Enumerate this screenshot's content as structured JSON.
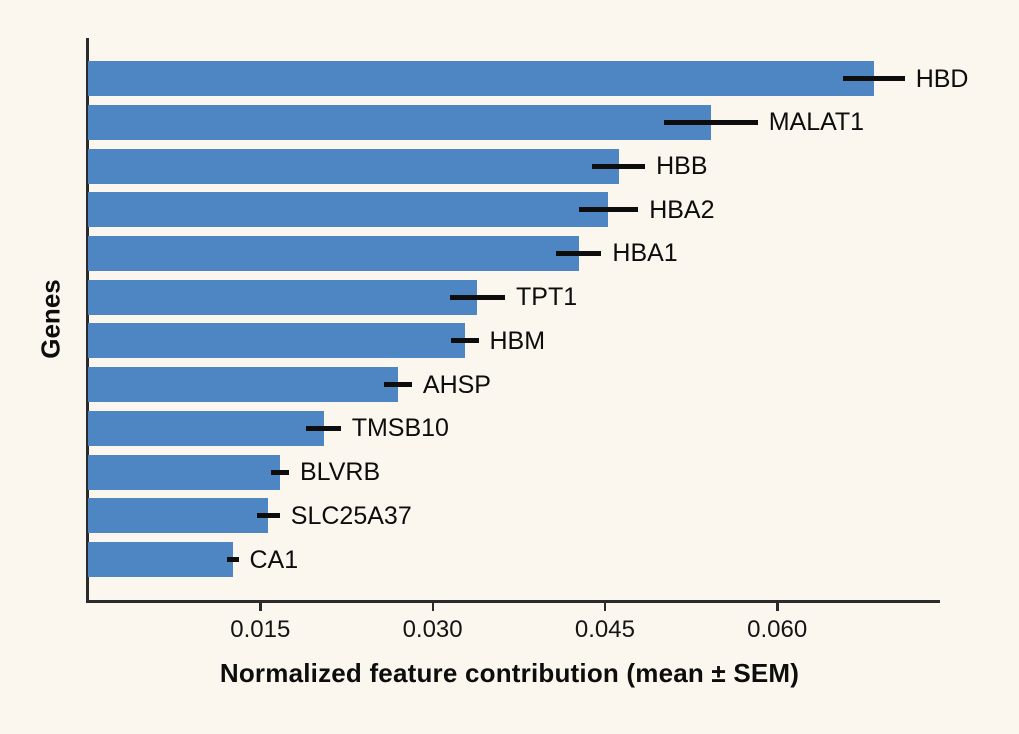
{
  "figure": {
    "background_color": "#fbf6ee",
    "bar_color": "#4e86c3",
    "axis_color": "#2b2b2b",
    "errorbar_color": "#0d0d0d"
  },
  "chart_data": {
    "type": "bar",
    "orientation": "horizontal",
    "title": "",
    "xlabel": "Normalized feature contribution (mean ± SEM)",
    "ylabel": "Genes",
    "categories": [
      "HBD",
      "MALAT1",
      "HBB",
      "HBA2",
      "HBA1",
      "TPT1",
      "HBM",
      "AHSP",
      "TMSB10",
      "BLVRB",
      "SLC25A37",
      "CA1"
    ],
    "series": [
      {
        "name": "mean",
        "values": [
          0.0684,
          0.0542,
          0.0462,
          0.0453,
          0.0427,
          0.0339,
          0.0328,
          0.027,
          0.0205,
          0.0167,
          0.0157,
          0.0126
        ]
      },
      {
        "name": "sem",
        "values": [
          0.0027,
          0.0041,
          0.0023,
          0.0026,
          0.002,
          0.0024,
          0.0012,
          0.0012,
          0.0015,
          0.0008,
          0.001,
          0.0005
        ]
      }
    ],
    "xticks": [
      0.015,
      0.03,
      0.045,
      0.06
    ],
    "xtick_labels": [
      "0.015",
      "0.030",
      "0.045",
      "0.060"
    ],
    "xlim": [
      0,
      0.074
    ],
    "grid": false,
    "legend": null,
    "bar_labels_position": "right-of-error-bar"
  }
}
